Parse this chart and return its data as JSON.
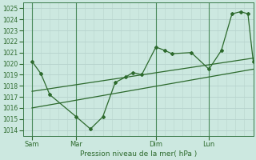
{
  "xlabel": "Pression niveau de la mer( hPa )",
  "ylim": [
    1013.5,
    1025.5
  ],
  "yticks": [
    1014,
    1015,
    1016,
    1017,
    1018,
    1019,
    1020,
    1021,
    1022,
    1023,
    1024,
    1025
  ],
  "bg_color": "#cce8e0",
  "grid_color": "#b8d8d0",
  "line_color": "#2d6a2d",
  "xtick_labels": [
    "Sam",
    "Mar",
    "Dim",
    "Lun"
  ],
  "xtick_positions": [
    0.5,
    3.0,
    7.5,
    10.5
  ],
  "xlim": [
    0,
    13
  ],
  "vlines_x": [
    0.5,
    3.0,
    7.5,
    10.5
  ],
  "line1_x": [
    0.5,
    1.0,
    1.5,
    3.0,
    3.8,
    4.5,
    5.2,
    5.8,
    6.2,
    6.7,
    7.5,
    8.0,
    8.4,
    9.5,
    10.5,
    11.2,
    11.8,
    12.3,
    12.7,
    13.0
  ],
  "line1_y": [
    1020.2,
    1019.1,
    1017.2,
    1015.2,
    1014.1,
    1015.2,
    1018.3,
    1018.8,
    1019.2,
    1019.0,
    1021.5,
    1021.2,
    1020.9,
    1021.0,
    1019.5,
    1021.2,
    1024.5,
    1024.7,
    1024.5,
    1020.2
  ],
  "trend1_x": [
    0.5,
    13.0
  ],
  "trend1_y": [
    1017.5,
    1020.5
  ],
  "trend2_x": [
    0.5,
    13.0
  ],
  "trend2_y": [
    1016.0,
    1019.5
  ]
}
